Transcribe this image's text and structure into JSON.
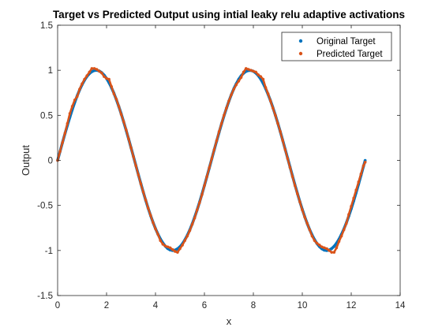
{
  "chart_data": {
    "type": "scatter",
    "title": "Target vs Predicted Output using intial leaky relu adaptive activations",
    "xlabel": "x",
    "ylabel": "Output",
    "xlim": [
      0,
      14
    ],
    "ylim": [
      -1.5,
      1.5
    ],
    "xticks": [
      0,
      2,
      4,
      6,
      8,
      10,
      12,
      14
    ],
    "yticks": [
      -1.5,
      -1,
      -0.5,
      0,
      0.5,
      1,
      1.5
    ],
    "xtick_labels": [
      "0",
      "2",
      "4",
      "6",
      "8",
      "10",
      "12",
      "14"
    ],
    "ytick_labels": [
      "-1.5",
      "-1",
      "-0.5",
      "0",
      "0.5",
      "1",
      "1.5"
    ],
    "grid": false,
    "legend_position": "top-right",
    "series": [
      {
        "name": "Original Target",
        "color": "#0072BD",
        "x": [
          0,
          0.1,
          0.2,
          0.3,
          0.4,
          0.5,
          0.6,
          0.7,
          0.8,
          0.9,
          1.0,
          1.1,
          1.2,
          1.3,
          1.4,
          1.5,
          1.6,
          1.7,
          1.8,
          1.9,
          2.0,
          2.1,
          2.2,
          2.3,
          2.4,
          2.5,
          2.6,
          2.7,
          2.8,
          2.9,
          3.0,
          3.1,
          3.2,
          3.3,
          3.4,
          3.5,
          3.6,
          3.7,
          3.8,
          3.9,
          4.0,
          4.1,
          4.2,
          4.3,
          4.4,
          4.5,
          4.6,
          4.7,
          4.8,
          4.9,
          5.0,
          5.1,
          5.2,
          5.3,
          5.4,
          5.5,
          5.6,
          5.7,
          5.8,
          5.9,
          6.0,
          6.1,
          6.2,
          6.3,
          6.4,
          6.5,
          6.6,
          6.7,
          6.8,
          6.9,
          7.0,
          7.1,
          7.2,
          7.3,
          7.4,
          7.5,
          7.6,
          7.7,
          7.8,
          7.9,
          8.0,
          8.1,
          8.2,
          8.3,
          8.4,
          8.5,
          8.6,
          8.7,
          8.8,
          8.9,
          9.0,
          9.1,
          9.2,
          9.3,
          9.4,
          9.5,
          9.6,
          9.7,
          9.8,
          9.9,
          10.0,
          10.1,
          10.2,
          10.3,
          10.4,
          10.5,
          10.6,
          10.7,
          10.8,
          10.9,
          11.0,
          11.1,
          11.2,
          11.3,
          11.4,
          11.5,
          11.6,
          11.7,
          11.8,
          11.9,
          12.0,
          12.1,
          12.2,
          12.3,
          12.4,
          12.5,
          12.57
        ],
        "y": [
          0,
          0.1,
          0.199,
          0.296,
          0.389,
          0.479,
          0.565,
          0.644,
          0.717,
          0.783,
          0.841,
          0.891,
          0.932,
          0.964,
          0.985,
          0.997,
          1.0,
          0.992,
          0.974,
          0.946,
          0.909,
          0.863,
          0.808,
          0.746,
          0.675,
          0.598,
          0.516,
          0.427,
          0.335,
          0.239,
          0.141,
          0.042,
          -0.058,
          -0.158,
          -0.256,
          -0.351,
          -0.443,
          -0.53,
          -0.612,
          -0.688,
          -0.757,
          -0.818,
          -0.872,
          -0.916,
          -0.952,
          -0.978,
          -0.994,
          -1.0,
          -0.996,
          -0.982,
          -0.959,
          -0.926,
          -0.883,
          -0.832,
          -0.773,
          -0.706,
          -0.631,
          -0.551,
          -0.465,
          -0.374,
          -0.279,
          -0.182,
          -0.083,
          0.017,
          0.117,
          0.215,
          0.312,
          0.405,
          0.494,
          0.578,
          0.657,
          0.729,
          0.794,
          0.85,
          0.899,
          0.938,
          0.968,
          0.988,
          0.998,
          0.999,
          0.989,
          0.97,
          0.941,
          0.903,
          0.855,
          0.798,
          0.734,
          0.663,
          0.585,
          0.501,
          0.412,
          0.319,
          0.223,
          0.124,
          0.025,
          -0.075,
          -0.174,
          -0.272,
          -0.366,
          -0.458,
          -0.544,
          -0.625,
          -0.7,
          -0.768,
          -0.828,
          -0.88,
          -0.923,
          -0.957,
          -0.981,
          -0.996,
          -1.0,
          -0.994,
          -0.979,
          -0.954,
          -0.919,
          -0.875,
          -0.822,
          -0.762,
          -0.694,
          -0.618,
          -0.537,
          -0.45,
          -0.358,
          -0.263,
          -0.165,
          -0.066,
          0.0
        ]
      },
      {
        "name": "Predicted Target",
        "color": "#D95319",
        "x": [
          0,
          0.1,
          0.2,
          0.3,
          0.4,
          0.5,
          0.6,
          0.7,
          0.8,
          0.9,
          1.0,
          1.1,
          1.2,
          1.3,
          1.4,
          1.5,
          1.6,
          1.7,
          1.8,
          1.9,
          2.0,
          2.1,
          2.2,
          2.3,
          2.4,
          2.5,
          2.6,
          2.7,
          2.8,
          2.9,
          3.0,
          3.1,
          3.2,
          3.3,
          3.4,
          3.5,
          3.6,
          3.7,
          3.8,
          3.9,
          4.0,
          4.1,
          4.2,
          4.3,
          4.4,
          4.5,
          4.6,
          4.7,
          4.8,
          4.9,
          5.0,
          5.1,
          5.2,
          5.3,
          5.4,
          5.5,
          5.6,
          5.7,
          5.8,
          5.9,
          6.0,
          6.1,
          6.2,
          6.3,
          6.4,
          6.5,
          6.6,
          6.7,
          6.8,
          6.9,
          7.0,
          7.1,
          7.2,
          7.3,
          7.4,
          7.5,
          7.6,
          7.7,
          7.8,
          7.9,
          8.0,
          8.1,
          8.2,
          8.3,
          8.4,
          8.5,
          8.6,
          8.7,
          8.8,
          8.9,
          9.0,
          9.1,
          9.2,
          9.3,
          9.4,
          9.5,
          9.6,
          9.7,
          9.8,
          9.9,
          10.0,
          10.1,
          10.2,
          10.3,
          10.4,
          10.5,
          10.6,
          10.7,
          10.8,
          10.9,
          11.0,
          11.1,
          11.2,
          11.3,
          11.4,
          11.5,
          11.6,
          11.7,
          11.8,
          11.9,
          12.0,
          12.1,
          12.2,
          12.3,
          12.4,
          12.5,
          12.57
        ],
        "y": [
          0.0,
          0.1,
          0.2,
          0.3,
          0.41,
          0.52,
          0.6,
          0.67,
          0.71,
          0.79,
          0.85,
          0.9,
          0.94,
          0.98,
          1.02,
          1.02,
          1.01,
          0.99,
          0.97,
          0.93,
          0.91,
          0.9,
          0.82,
          0.74,
          0.68,
          0.6,
          0.51,
          0.43,
          0.34,
          0.24,
          0.14,
          0.04,
          -0.06,
          -0.16,
          -0.26,
          -0.35,
          -0.44,
          -0.53,
          -0.61,
          -0.69,
          -0.76,
          -0.82,
          -0.89,
          -0.93,
          -0.95,
          -0.96,
          -0.97,
          -0.99,
          -1.01,
          -1.02,
          -0.98,
          -0.94,
          -0.89,
          -0.84,
          -0.78,
          -0.71,
          -0.64,
          -0.55,
          -0.47,
          -0.38,
          -0.28,
          -0.18,
          -0.08,
          0.02,
          0.12,
          0.22,
          0.32,
          0.41,
          0.5,
          0.58,
          0.66,
          0.73,
          0.79,
          0.84,
          0.88,
          0.92,
          0.98,
          1.02,
          1.01,
          1.0,
          0.99,
          0.98,
          0.95,
          0.93,
          0.9,
          0.81,
          0.74,
          0.66,
          0.58,
          0.5,
          0.41,
          0.32,
          0.22,
          0.12,
          0.02,
          -0.08,
          -0.18,
          -0.28,
          -0.37,
          -0.46,
          -0.55,
          -0.63,
          -0.7,
          -0.77,
          -0.84,
          -0.89,
          -0.92,
          -0.94,
          -0.96,
          -0.97,
          -0.98,
          -1.0,
          -1.02,
          -1.02,
          -0.97,
          -0.9,
          -0.84,
          -0.77,
          -0.7,
          -0.6,
          -0.51,
          -0.42,
          -0.33,
          -0.24,
          -0.15,
          -0.06,
          -0.02
        ]
      }
    ]
  }
}
